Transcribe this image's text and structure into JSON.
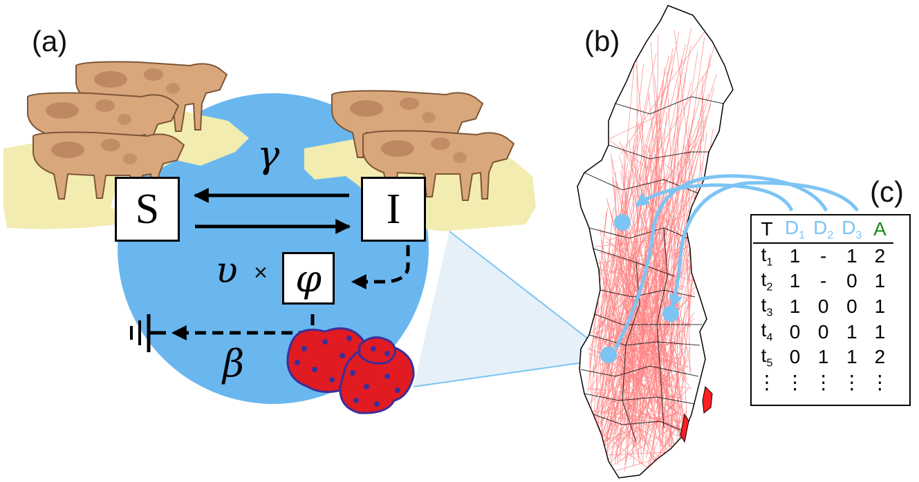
{
  "panels": {
    "a": "(a)",
    "b": "(b)",
    "c": "(c)"
  },
  "model": {
    "susceptible": "S",
    "infected": "I",
    "gamma": "γ",
    "upsilon": "υ",
    "times": "×",
    "phi": "φ",
    "beta": "β"
  },
  "table": {
    "header": [
      {
        "main": "T",
        "sub": ""
      },
      {
        "main": "D",
        "sub": "1"
      },
      {
        "main": "D",
        "sub": "2"
      },
      {
        "main": "D",
        "sub": "3"
      },
      {
        "main": "A",
        "sub": ""
      }
    ],
    "rows": [
      {
        "t": "t",
        "tsub": "1",
        "d1": "1",
        "d2": "-",
        "d3": "1",
        "a": "2"
      },
      {
        "t": "t",
        "tsub": "2",
        "d1": "1",
        "d2": "-",
        "d3": "0",
        "a": "1"
      },
      {
        "t": "t",
        "tsub": "3",
        "d1": "1",
        "d2": "0",
        "d3": "0",
        "a": "1"
      },
      {
        "t": "t",
        "tsub": "4",
        "d1": "0",
        "d2": "0",
        "d3": "1",
        "a": "1"
      },
      {
        "t": "t",
        "tsub": "5",
        "d1": "0",
        "d2": "1",
        "d3": "1",
        "a": "2"
      }
    ],
    "ellipsis": "⋮"
  },
  "colors": {
    "circle": "#6ab7f0",
    "cow": "#d9a77c",
    "cow_spot": "#b07c58",
    "grass": "#f2ecb0",
    "network": "#ff2020",
    "connector": "#7cc4f4",
    "dataset": "#7cc4f4",
    "animals": "#1a8a1a",
    "pathogen": "#e01b22",
    "pathogen_dot": "#3a2f9a"
  }
}
